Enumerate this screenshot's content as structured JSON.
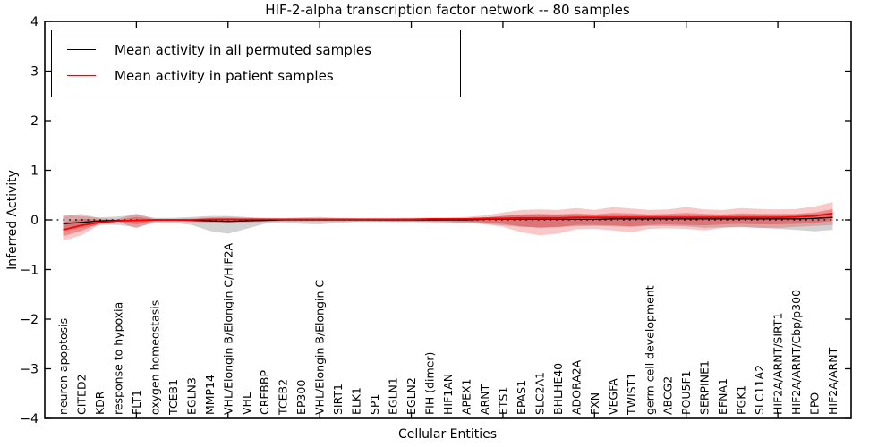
{
  "title": "HIF-2-alpha transcription factor network -- 80 samples",
  "legend": {
    "items": [
      {
        "label": "Mean activity in all permuted samples",
        "color": "#000000"
      },
      {
        "label": "Mean activity in patient samples",
        "color": "#ff0000"
      }
    ]
  },
  "chart_data": {
    "type": "line",
    "title": "HIF-2-alpha transcription factor network -- 80 samples",
    "xlabel": "Cellular Entities",
    "ylabel": "Inferred Activity",
    "ylim": [
      -4,
      4
    ],
    "yticks": [
      -4,
      -3,
      -2,
      -1,
      0,
      1,
      2,
      3,
      4
    ],
    "x_axis_range": [
      0,
      44
    ],
    "x_axis_tick_step": 5,
    "grid": false,
    "zero_line": true,
    "legend_position": "upper left",
    "categories": [
      "neuron apoptosis",
      "CITED2",
      "KDR",
      "response to hypoxia",
      "FLT1",
      "oxygen homeostasis",
      "TCEB1",
      "EGLN3",
      "MMP14",
      "VHL/Elongin B/Elongin C/HIF2A",
      "VHL",
      "CREBBP",
      "TCEB2",
      "EP300",
      "VHL/Elongin B/Elongin C",
      "SIRT1",
      "ELK1",
      "SP1",
      "EGLN1",
      "EGLN2",
      "FIH (dimer)",
      "HIF1AN",
      "APEX1",
      "ARNT",
      "ETS1",
      "EPAS1",
      "SLC2A1",
      "BHLHE40",
      "ADORA2A",
      "FXN",
      "VEGFA",
      "TWIST1",
      "germ cell development",
      "ABCG2",
      "POU5F1",
      "SERPINE1",
      "EFNA1",
      "PGK1",
      "SLC11A2",
      "HIF2A/ARNT/SIRT1",
      "HIF2A/ARNT/Cbp/p300",
      "EPO",
      "HIF2A/ARNT"
    ],
    "series": [
      {
        "name": "Mean activity in all permuted samples",
        "color": "#000000",
        "width": 1.3,
        "values": [
          -0.08,
          -0.05,
          -0.02,
          -0.01,
          -0.01,
          0,
          0,
          -0.01,
          -0.02,
          -0.03,
          -0.02,
          -0.01,
          0,
          0,
          0,
          0,
          0,
          0,
          0,
          0,
          0,
          0,
          0,
          0.01,
          0.01,
          0.01,
          0.01,
          0.01,
          0.01,
          0.01,
          0.02,
          0.02,
          0.02,
          0.02,
          0.02,
          0.02,
          0.02,
          0.02,
          0.02,
          0.02,
          0.02,
          0.03,
          0.05
        ]
      },
      {
        "name": "Mean activity in patient samples",
        "color": "#ff0000",
        "width": 1.8,
        "values": [
          -0.2,
          -0.11,
          -0.05,
          -0.02,
          -0.01,
          0,
          0,
          0,
          0.01,
          0.01,
          0.01,
          0.01,
          0.01,
          0.01,
          0.01,
          0.01,
          0.01,
          0.01,
          0.01,
          0.01,
          0.02,
          0.02,
          0.02,
          0.03,
          0.03,
          0.04,
          0.04,
          0.04,
          0.05,
          0.05,
          0.05,
          0.05,
          0.05,
          0.05,
          0.05,
          0.05,
          0.05,
          0.05,
          0.05,
          0.05,
          0.06,
          0.08,
          0.13
        ]
      }
    ],
    "bands": [
      {
        "name": "permuted-samples-range",
        "color": "#8a8a8a",
        "opacity": 0.38,
        "upper": [
          0.1,
          0.08,
          0.05,
          0.07,
          0.1,
          0.04,
          0.04,
          0.06,
          0.08,
          0.08,
          0.06,
          0.04,
          0.03,
          0.05,
          0.06,
          0.04,
          0.03,
          0.03,
          0.03,
          0.03,
          0.03,
          0.03,
          0.04,
          0.05,
          0.08,
          0.1,
          0.1,
          0.1,
          0.1,
          0.1,
          0.11,
          0.1,
          0.1,
          0.1,
          0.11,
          0.1,
          0.1,
          0.11,
          0.1,
          0.1,
          0.11,
          0.12,
          0.15
        ],
        "lower": [
          -0.22,
          -0.16,
          -0.1,
          -0.1,
          -0.15,
          -0.06,
          -0.06,
          -0.1,
          -0.22,
          -0.28,
          -0.18,
          -0.08,
          -0.05,
          -0.08,
          -0.09,
          -0.06,
          -0.04,
          -0.04,
          -0.04,
          -0.04,
          -0.04,
          -0.05,
          -0.06,
          -0.08,
          -0.11,
          -0.14,
          -0.15,
          -0.14,
          -0.13,
          -0.12,
          -0.13,
          -0.14,
          -0.12,
          -0.12,
          -0.13,
          -0.16,
          -0.15,
          -0.14,
          -0.16,
          -0.18,
          -0.2,
          -0.23,
          -0.2
        ]
      },
      {
        "name": "patient-samples-range-outer",
        "color": "#e41a1c",
        "opacity": 0.24,
        "upper": [
          0.07,
          0.12,
          0.03,
          0.02,
          0.13,
          0.02,
          0.02,
          0.03,
          0.05,
          0.06,
          0.04,
          0.03,
          0.03,
          0.03,
          0.03,
          0.03,
          0.03,
          0.03,
          0.03,
          0.04,
          0.04,
          0.05,
          0.06,
          0.09,
          0.15,
          0.2,
          0.21,
          0.2,
          0.24,
          0.2,
          0.26,
          0.23,
          0.2,
          0.21,
          0.26,
          0.21,
          0.2,
          0.24,
          0.22,
          0.21,
          0.22,
          0.27,
          0.36
        ],
        "lower": [
          -0.42,
          -0.31,
          -0.09,
          -0.04,
          -0.17,
          -0.03,
          -0.03,
          -0.04,
          -0.06,
          -0.06,
          -0.05,
          -0.04,
          -0.03,
          -0.03,
          -0.03,
          -0.03,
          -0.03,
          -0.03,
          -0.04,
          -0.04,
          -0.05,
          -0.05,
          -0.06,
          -0.09,
          -0.14,
          -0.25,
          -0.31,
          -0.28,
          -0.19,
          -0.18,
          -0.21,
          -0.25,
          -0.18,
          -0.17,
          -0.18,
          -0.21,
          -0.16,
          -0.15,
          -0.16,
          -0.16,
          -0.14,
          -0.12,
          -0.1
        ]
      },
      {
        "name": "patient-samples-range-inner",
        "color": "#e41a1c",
        "opacity": 0.34,
        "upper": [
          -0.05,
          0.02,
          0,
          0,
          0.06,
          0.01,
          0.01,
          0.01,
          0.03,
          0.03,
          0.02,
          0.02,
          0.02,
          0.02,
          0.02,
          0.02,
          0.02,
          0.02,
          0.02,
          0.02,
          0.02,
          0.03,
          0.03,
          0.05,
          0.08,
          0.11,
          0.12,
          0.11,
          0.13,
          0.11,
          0.14,
          0.13,
          0.11,
          0.12,
          0.14,
          0.12,
          0.11,
          0.13,
          0.12,
          0.12,
          0.12,
          0.15,
          0.22
        ],
        "lower": [
          -0.33,
          -0.22,
          -0.07,
          -0.03,
          -0.09,
          -0.02,
          -0.02,
          -0.02,
          -0.02,
          -0.02,
          -0.02,
          -0.02,
          -0.01,
          -0.01,
          -0.01,
          -0.01,
          -0.01,
          -0.01,
          -0.02,
          -0.02,
          -0.02,
          -0.02,
          -0.03,
          -0.05,
          -0.08,
          -0.13,
          -0.16,
          -0.15,
          -0.1,
          -0.1,
          -0.11,
          -0.13,
          -0.1,
          -0.09,
          -0.1,
          -0.11,
          -0.09,
          -0.08,
          -0.09,
          -0.09,
          -0.08,
          -0.06,
          -0.02
        ]
      }
    ]
  }
}
